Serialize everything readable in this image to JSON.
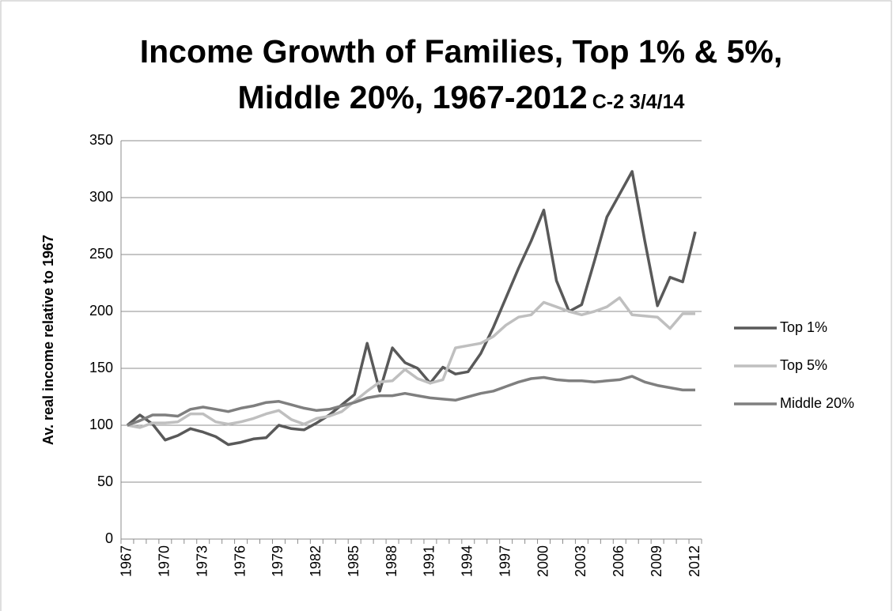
{
  "chart_data": {
    "type": "line",
    "title": "Income Growth of Families, Top 1% & 5%, Middle 20%, 1967-2012",
    "subtitle": "C-2 3/4/14",
    "y_label": "Av. real income relative to 1967",
    "categories": [
      "1967",
      null,
      null,
      "1970",
      null,
      null,
      "1973",
      null,
      null,
      "1976",
      null,
      null,
      "1979",
      null,
      null,
      "1982",
      null,
      null,
      "1985",
      null,
      null,
      "1988",
      null,
      null,
      "1991",
      null,
      null,
      "1994",
      null,
      null,
      "1997",
      null,
      null,
      "2000",
      null,
      null,
      "2003",
      null,
      null,
      "2006",
      null,
      null,
      "2009",
      null,
      null,
      "2012"
    ],
    "series": [
      {
        "name": "Top 1%",
        "color": "#595959",
        "values": [
          100,
          109,
          101,
          87,
          91,
          97,
          94,
          90,
          83,
          85,
          88,
          89,
          100,
          97,
          96,
          102,
          109,
          118,
          127,
          172,
          130,
          168,
          155,
          150,
          137,
          151,
          145,
          147,
          163,
          186,
          212,
          238,
          262,
          289,
          227,
          200,
          206,
          244,
          283,
          303,
          323,
          262,
          205,
          230,
          226,
          270
        ]
      },
      {
        "name": "Top 5%",
        "color": "#bfbfbf",
        "values": [
          100,
          98,
          102,
          102,
          103,
          110,
          110,
          103,
          101,
          103,
          106,
          110,
          113,
          105,
          101,
          106,
          108,
          112,
          121,
          130,
          138,
          139,
          149,
          141,
          137,
          140,
          168,
          170,
          172,
          178,
          188,
          195,
          197,
          208,
          204,
          200,
          197,
          200,
          204,
          212,
          197,
          196,
          195,
          185,
          198,
          198
        ]
      },
      {
        "name": "Middle 20%",
        "color": "#7f7f7f",
        "values": [
          100,
          104,
          109,
          109,
          108,
          114,
          116,
          114,
          112,
          115,
          117,
          120,
          121,
          118,
          115,
          113,
          114,
          117,
          120,
          124,
          126,
          126,
          128,
          126,
          124,
          123,
          122,
          125,
          128,
          130,
          134,
          138,
          141,
          142,
          140,
          139,
          139,
          138,
          139,
          140,
          143,
          138,
          135,
          133,
          131,
          131
        ]
      }
    ],
    "ylim": [
      0,
      350
    ],
    "yticks": [
      0,
      50,
      100,
      150,
      200,
      250,
      300,
      350
    ],
    "grid": true,
    "legend": "right"
  }
}
